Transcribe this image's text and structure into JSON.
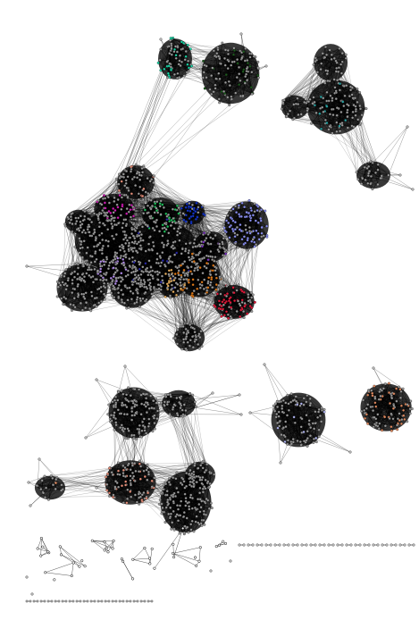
{
  "figure": {
    "type": "network-graph",
    "background": "#ffffff",
    "edge_color": "#000000",
    "node_fill_default": "#9a9a9a",
    "node_stroke": "#000000",
    "community_colors": {
      "teal_green": "#19d8a8",
      "dark_green": "#1e5a1e",
      "teal": "#2aa6a6",
      "salmon": "#e8907a",
      "magenta": "#d01ab4",
      "green": "#1fbf5a",
      "blue": "#1535c8",
      "periwinkle": "#8a8ff0",
      "navy": "#2a2aa8",
      "lavender": "#b08ae8",
      "orange": "#e07a1a",
      "tan": "#e8b060",
      "crimson": "#e01a3a",
      "purple": "#7a30c0",
      "light_periwinkle": "#b0b4f0",
      "copper": "#e08a60"
    },
    "components": [
      {
        "name": "top-center-component",
        "communities": [
          "teal_green",
          "dark_green"
        ]
      },
      {
        "name": "top-right-component",
        "communities": [
          "teal"
        ]
      },
      {
        "name": "main-component",
        "communities": [
          "salmon",
          "magenta",
          "green",
          "blue",
          "periwinkle",
          "navy",
          "lavender",
          "orange",
          "tan",
          "crimson",
          "purple"
        ]
      },
      {
        "name": "lower-left-component",
        "communities": [
          "salmon",
          "copper"
        ]
      },
      {
        "name": "lower-center-component",
        "communities": [
          "light_periwinkle"
        ]
      },
      {
        "name": "lower-right-component",
        "communities": [
          "copper"
        ]
      },
      {
        "name": "small-components-strip",
        "communities": []
      }
    ]
  }
}
